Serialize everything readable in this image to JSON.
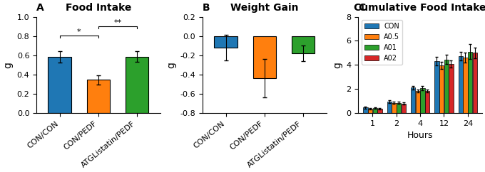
{
  "chart_data": [
    {
      "type": "bar",
      "panel_label": "A",
      "title": "Food Intake",
      "categories": [
        "CON/CON",
        "CON/PEDF",
        "ATGListatin/PEDF"
      ],
      "values": [
        0.585,
        0.345,
        0.585
      ],
      "errors": [
        0.06,
        0.05,
        0.055
      ],
      "ylabel": "g",
      "ylim": [
        0.0,
        1.0
      ],
      "yticks": [
        0.0,
        0.2,
        0.4,
        0.6,
        0.8,
        1.0
      ],
      "annotations": [
        {
          "from": "CON/CON",
          "to": "CON/PEDF",
          "y": 0.78,
          "label": "*"
        },
        {
          "from": "CON/PEDF",
          "to": "ATGListatin/PEDF",
          "y": 0.88,
          "label": "**"
        }
      ]
    },
    {
      "type": "bar",
      "panel_label": "B",
      "title": "Weight Gain",
      "categories": [
        "CON/CON",
        "CON/PEDF",
        "ATGListatin/PEDF"
      ],
      "values": [
        -0.12,
        -0.44,
        -0.18
      ],
      "errors": [
        0.13,
        0.2,
        0.08
      ],
      "ylabel": "g",
      "ylim": [
        -0.8,
        0.2
      ],
      "yticks": [
        -0.8,
        -0.6,
        -0.4,
        -0.2,
        0.0,
        0.2
      ]
    },
    {
      "type": "bar",
      "panel_label": "C",
      "title": "Cumulative Food Intake",
      "categories": [
        "1",
        "2",
        "4",
        "12",
        "24"
      ],
      "xlabel": "Hours",
      "ylabel": "g",
      "series": [
        {
          "name": "CON",
          "values": [
            0.45,
            0.95,
            2.1,
            4.3,
            4.7
          ],
          "errors": [
            0.07,
            0.1,
            0.15,
            0.35,
            0.35
          ]
        },
        {
          "name": "A0.5",
          "values": [
            0.35,
            0.85,
            1.85,
            3.95,
            4.6
          ],
          "errors": [
            0.07,
            0.1,
            0.12,
            0.3,
            0.4
          ]
        },
        {
          "name": "A01",
          "values": [
            0.4,
            0.85,
            2.05,
            4.45,
            5.1
          ],
          "errors": [
            0.07,
            0.1,
            0.18,
            0.4,
            0.6
          ]
        },
        {
          "name": "A02",
          "values": [
            0.35,
            0.8,
            1.85,
            4.1,
            5.0
          ],
          "errors": [
            0.06,
            0.1,
            0.12,
            0.3,
            0.45
          ]
        }
      ],
      "ylim": [
        0,
        8
      ],
      "yticks": [
        0,
        2,
        4,
        6,
        8
      ],
      "legend": "upper left"
    }
  ]
}
